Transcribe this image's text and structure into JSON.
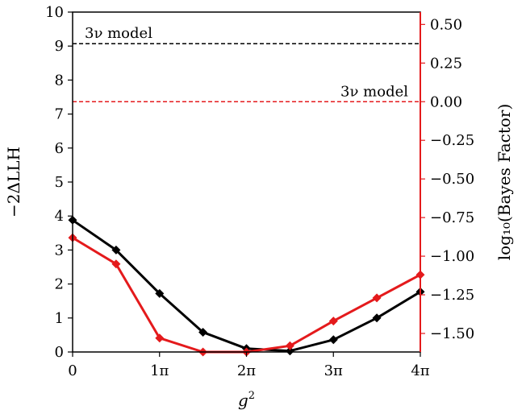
{
  "chart_data": {
    "type": "line",
    "xlabel": "g²",
    "x": [
      0,
      0.5,
      1,
      1.5,
      2,
      2.5,
      3,
      3.5,
      4
    ],
    "xlim": [
      0,
      4
    ],
    "x_ticks": [
      0,
      1,
      2,
      3,
      4
    ],
    "x_tick_labels": [
      "0",
      "1π",
      "2π",
      "3π",
      "4π"
    ],
    "left_axis": {
      "label": "−2ΔLLH",
      "ylim": [
        0,
        10
      ],
      "ticks": [
        0,
        1,
        2,
        3,
        4,
        5,
        6,
        7,
        8,
        9,
        10
      ],
      "tick_labels": [
        "0",
        "1",
        "2",
        "3",
        "4",
        "5",
        "6",
        "7",
        "8",
        "9",
        "10"
      ],
      "color": "#000000"
    },
    "right_axis": {
      "label": "log₁₀(Bayes Factor)",
      "ylim": [
        -1.62,
        0.58
      ],
      "ticks": [
        0.5,
        0.25,
        0.0,
        -0.25,
        -0.5,
        -0.75,
        -1.0,
        -1.25,
        -1.5
      ],
      "tick_labels": [
        "0.50",
        "0.25",
        "0.00",
        "−0.25",
        "−0.50",
        "−0.75",
        "−1.00",
        "−1.25",
        "−1.50"
      ],
      "color": "#e41a1c"
    },
    "series": [
      {
        "axis": "left",
        "color": "#000000",
        "marker": "diamond",
        "values": [
          3.88,
          3.0,
          1.72,
          0.58,
          0.1,
          0.03,
          0.36,
          1.0,
          1.77
        ]
      },
      {
        "axis": "right",
        "color": "#e41a1c",
        "marker": "diamond",
        "values": [
          -0.88,
          -1.05,
          -1.53,
          -1.62,
          -1.62,
          -1.58,
          -1.42,
          -1.27,
          -1.12
        ]
      }
    ],
    "reference_lines": [
      {
        "axis": "left",
        "value": 9.07,
        "color": "#000000",
        "style": "dashed",
        "label": "3ν model",
        "label_position": "top-left"
      },
      {
        "axis": "right",
        "value": 0.0,
        "color": "#e41a1c",
        "style": "dashed",
        "label": "3ν model",
        "label_position": "top-right"
      }
    ]
  }
}
